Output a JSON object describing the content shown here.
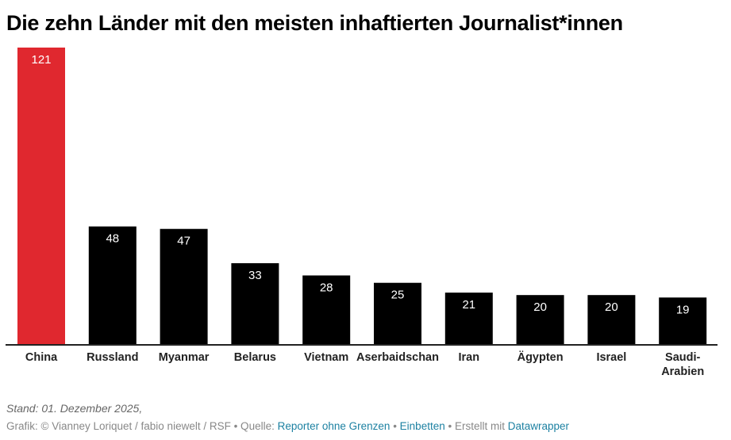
{
  "header": {
    "title": "Die zehn Länder mit den meisten inhaftierten Journalist*innen"
  },
  "colors": {
    "highlight": "#e0282f",
    "default": "#000000",
    "axis": "#222222",
    "link": "#1d81a2"
  },
  "chart_data": {
    "type": "bar",
    "title": "Die zehn Länder mit den meisten inhaftierten Journalist*innen",
    "xlabel": "",
    "ylabel": "",
    "categories": [
      "China",
      "Russland",
      "Myanmar",
      "Belarus",
      "Vietnam",
      "Aserbaidschan",
      "Iran",
      "Ägypten",
      "Israel",
      "Saudi-Arabien"
    ],
    "category_lines": [
      [
        "China"
      ],
      [
        "Russland"
      ],
      [
        "Myanmar"
      ],
      [
        "Belarus"
      ],
      [
        "Vietnam"
      ],
      [
        "Aserbaidschan"
      ],
      [
        "Iran"
      ],
      [
        "Ägypten"
      ],
      [
        "Israel"
      ],
      [
        "Saudi-",
        "Arabien"
      ]
    ],
    "values": [
      121,
      48,
      47,
      33,
      28,
      25,
      21,
      20,
      20,
      19
    ],
    "value_labels": [
      "121",
      "48",
      "47",
      "33",
      "28",
      "25",
      "21",
      "20",
      "20",
      "19"
    ],
    "highlighted": [
      "China"
    ],
    "ylim": [
      0,
      121
    ],
    "grid": false,
    "legend": "none"
  },
  "footer": {
    "note": "Stand: 01. Dezember 2025,",
    "byline_prefix": "Grafik: © Vianney Loriquet / fabio niewelt / RSF • Quelle: ",
    "source_link": "Reporter ohne Grenzen",
    "sep1": " • ",
    "embed_link": "Einbetten",
    "sep2": "  • Erstellt mit ",
    "tool_link": "Datawrapper"
  }
}
